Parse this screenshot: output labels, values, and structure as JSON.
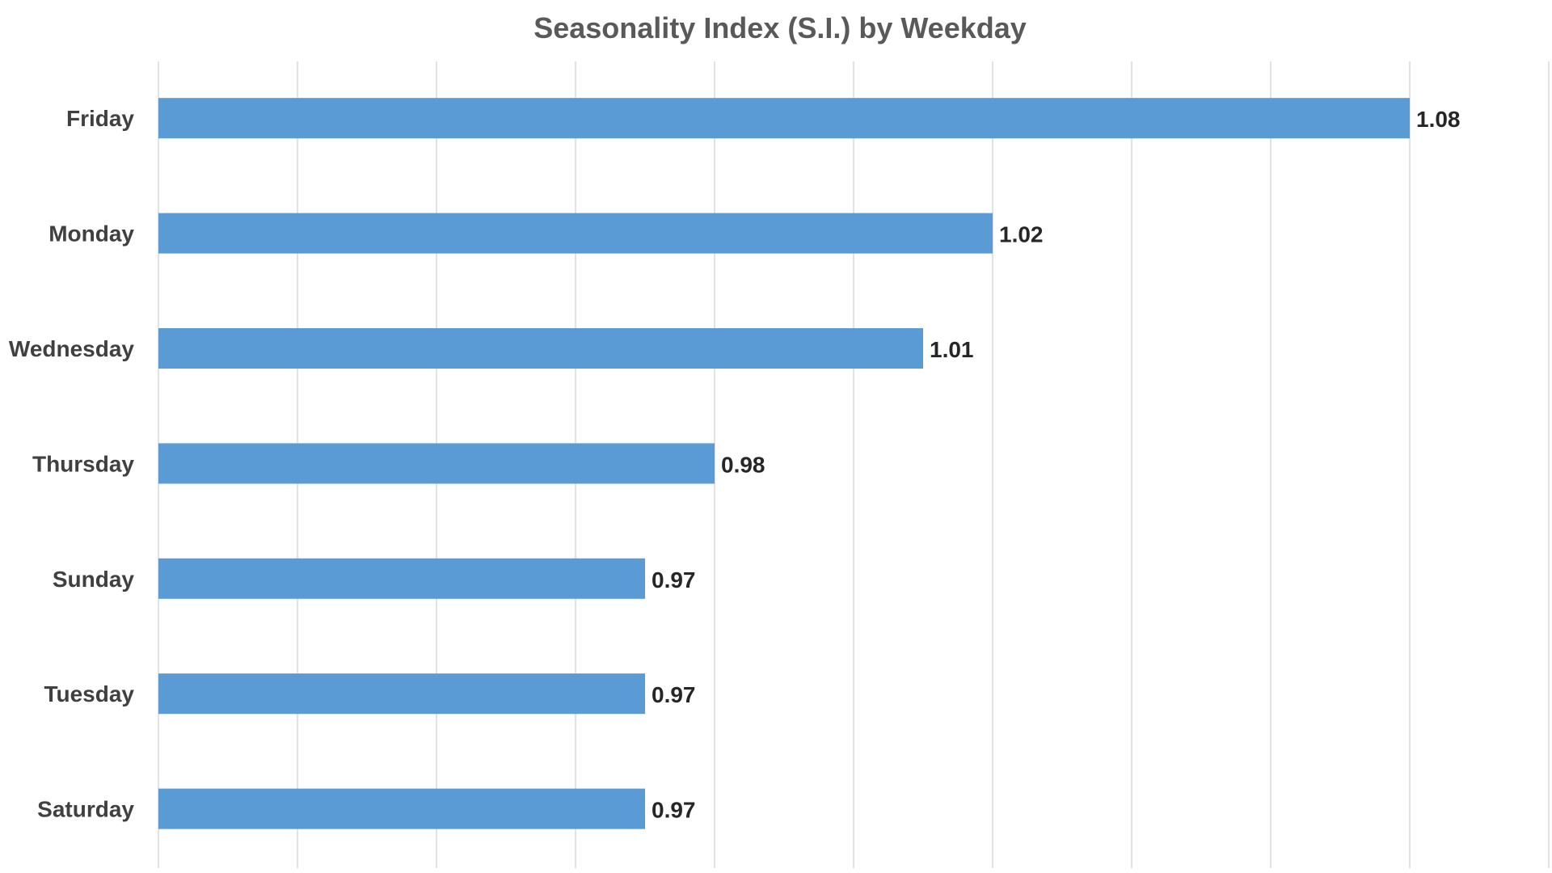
{
  "chart_data": {
    "type": "bar",
    "orientation": "horizontal",
    "title": "Seasonality Index (S.I.) by Weekday",
    "xlabel": "",
    "ylabel": "",
    "categories": [
      "Friday",
      "Monday",
      "Wednesday",
      "Thursday",
      "Sunday",
      "Tuesday",
      "Saturday"
    ],
    "values": [
      1.08,
      1.02,
      1.01,
      0.98,
      0.97,
      0.97,
      0.97
    ],
    "value_labels": [
      "1.08",
      "1.02",
      "1.01",
      "0.98",
      "0.97",
      "0.97",
      "0.97"
    ],
    "xlim": [
      0.9,
      1.1
    ],
    "x_gridline_step": 0.02,
    "x_tick_labels_visible": false,
    "grid": true,
    "legend": "none",
    "bar_color": "#5b9bd5",
    "gridline_color": "#d9d9d9"
  }
}
